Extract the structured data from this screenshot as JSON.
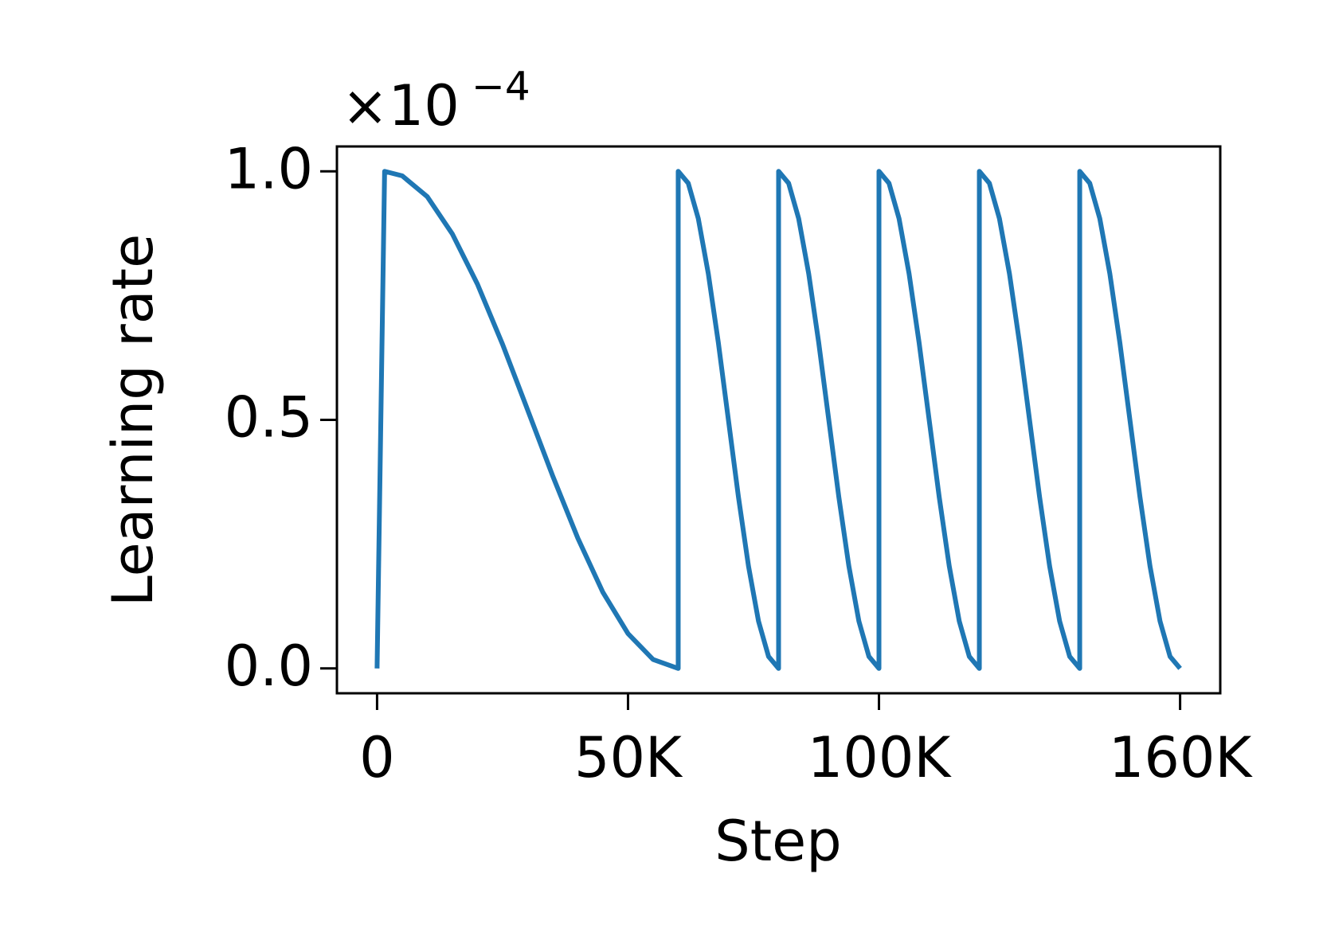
{
  "chart_data": {
    "type": "line",
    "x_label": "Step",
    "y_label": "Learning rate",
    "y_offset_base": "×10",
    "y_offset_exponent": "−4",
    "x": [
      0,
      1500,
      5000,
      10000,
      15000,
      20000,
      25000,
      30000,
      35000,
      40000,
      45000,
      50000,
      55000,
      60000,
      60000,
      62000,
      64000,
      66000,
      68000,
      70000,
      72000,
      74000,
      76000,
      78000,
      80000,
      80000,
      82000,
      84000,
      86000,
      88000,
      90000,
      92000,
      94000,
      96000,
      98000,
      100000,
      100000,
      102000,
      104000,
      106000,
      108000,
      110000,
      112000,
      114000,
      116000,
      118000,
      120000,
      120000,
      122000,
      124000,
      126000,
      128000,
      130000,
      132000,
      134000,
      136000,
      138000,
      140000,
      140000,
      142000,
      144000,
      146000,
      148000,
      150000,
      152000,
      154000,
      156000,
      158000,
      160000
    ],
    "series": [
      {
        "name": "Learning rate",
        "color": "#1f77b4",
        "values": [
          0,
          1,
          0.991,
          0.949,
          0.874,
          0.773,
          0.652,
          0.52,
          0.387,
          0.262,
          0.153,
          0.07,
          0.018,
          0,
          1,
          0.976,
          0.905,
          0.794,
          0.655,
          0.5,
          0.345,
          0.206,
          0.095,
          0.024,
          0,
          1,
          0.976,
          0.905,
          0.794,
          0.655,
          0.5,
          0.345,
          0.206,
          0.095,
          0.024,
          0,
          1,
          0.976,
          0.905,
          0.794,
          0.655,
          0.5,
          0.345,
          0.206,
          0.095,
          0.024,
          0,
          1,
          0.976,
          0.905,
          0.794,
          0.655,
          0.5,
          0.345,
          0.206,
          0.095,
          0.024,
          0,
          1,
          0.976,
          0.905,
          0.794,
          0.655,
          0.5,
          0.345,
          0.206,
          0.095,
          0.024,
          0
        ]
      }
    ],
    "xlim": [
      -8000,
      168000
    ],
    "ylim": [
      -0.05,
      1.05
    ],
    "xticks": [
      0,
      {
        "value": 50000,
        "label": "50K"
      },
      {
        "value": 100000,
        "label": "100K"
      },
      {
        "value": 160000,
        "label": "160K"
      }
    ],
    "yticks": [
      {
        "value": 0,
        "label": "0.0"
      },
      {
        "value": 0.5,
        "label": "0.5"
      },
      {
        "value": 1,
        "label": "1.0"
      }
    ],
    "grid": false
  }
}
